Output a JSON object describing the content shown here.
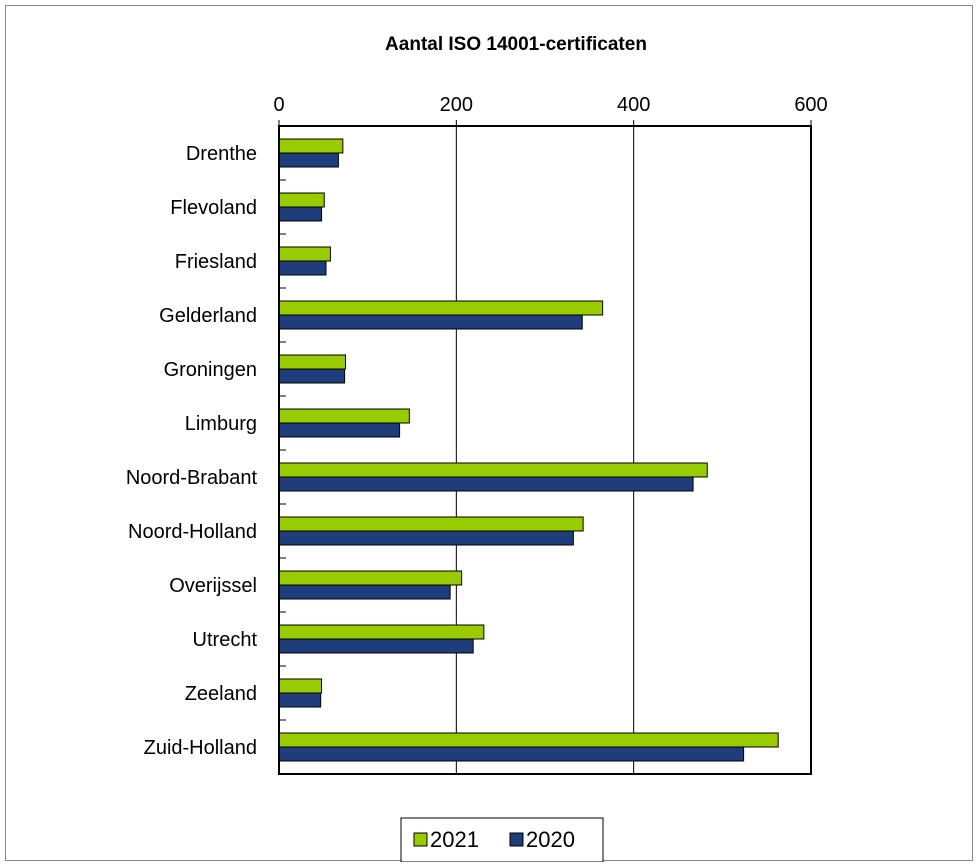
{
  "chart_data": {
    "type": "bar",
    "orientation": "horizontal",
    "title": "Aantal ISO 14001-certificaten",
    "xlabel": "",
    "ylabel": "",
    "xlim": [
      0,
      600
    ],
    "x_ticks": [
      "0",
      "200",
      "400",
      "600"
    ],
    "grid": "vertical major gridlines",
    "legend_position": "bottom",
    "categories": [
      "Drenthe",
      "Flevoland",
      "Friesland",
      "Gelderland",
      "Groningen",
      "Limburg",
      "Noord-Brabant",
      "Noord-Holland",
      "Overijssel",
      "Utrecht",
      "Zeeland",
      "Zuid-Holland"
    ],
    "series": [
      {
        "name": "2021",
        "color": "#99cc00",
        "values": [
          72,
          51,
          58,
          365,
          75,
          147,
          483,
          343,
          206,
          231,
          48,
          563
        ]
      },
      {
        "name": "2020",
        "color": "#1f3d7a",
        "values": [
          67,
          48,
          53,
          342,
          74,
          136,
          467,
          332,
          193,
          219,
          47,
          524
        ]
      }
    ]
  }
}
